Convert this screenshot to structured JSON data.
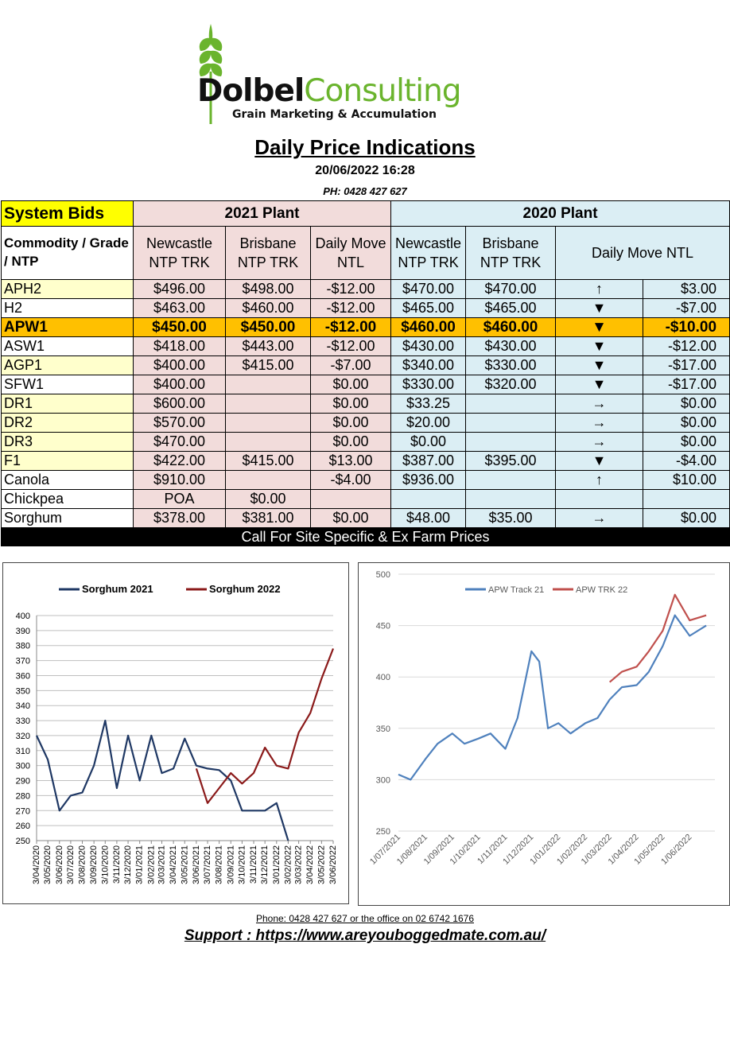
{
  "brand": {
    "name_a": "Dolbel",
    "name_b": "Consulting",
    "tagline": "Grain Marketing & Accumulation",
    "accent": "#6ab42d"
  },
  "header": {
    "title": "Daily Price Indications",
    "datetime": "20/06/2022 16:28",
    "phone": "PH: 0428 427 627"
  },
  "table": {
    "system_bids": "System Bids",
    "plant_2021": "2021 Plant",
    "plant_2020": "2020 Plant",
    "commodity_header": "Commodity / Grade / NTP",
    "col_newcastle_2021": "Newcastle NTP TRK",
    "col_brisbane_2021": "Brisbane NTP TRK",
    "col_move_2021": "Daily Move NTL",
    "col_newcastle_2020": "Newcastle NTP TRK",
    "col_brisbane_2020": "Brisbane NTP TRK",
    "col_move_2020": "Daily  Move NTL",
    "rows": [
      {
        "grade": "APH2",
        "nc21": "$496.00",
        "bn21": "$498.00",
        "mv21": "-$12.00",
        "nc20": "$470.00",
        "bn20": "$470.00",
        "dir": "↑",
        "mv20": "$3.00"
      },
      {
        "grade": "H2",
        "nc21": "$463.00",
        "bn21": "$460.00",
        "mv21": "-$12.00",
        "nc20": "$465.00",
        "bn20": "$465.00",
        "dir": "▼",
        "mv20": "-$7.00"
      },
      {
        "grade": "APW1",
        "nc21": "$450.00",
        "bn21": "$450.00",
        "mv21": "-$12.00",
        "nc20": "$460.00",
        "bn20": "$460.00",
        "dir": "▼",
        "mv20": "-$10.00"
      },
      {
        "grade": "ASW1",
        "nc21": "$418.00",
        "bn21": "$443.00",
        "mv21": "-$12.00",
        "nc20": "$430.00",
        "bn20": "$430.00",
        "dir": "▼",
        "mv20": "-$12.00"
      },
      {
        "grade": "AGP1",
        "nc21": "$400.00",
        "bn21": "$415.00",
        "mv21": "-$7.00",
        "nc20": "$340.00",
        "bn20": "$330.00",
        "dir": "▼",
        "mv20": "-$17.00"
      },
      {
        "grade": "SFW1",
        "nc21": "$400.00",
        "bn21": "",
        "mv21": "$0.00",
        "nc20": "$330.00",
        "bn20": "$320.00",
        "dir": "▼",
        "mv20": "-$17.00"
      },
      {
        "grade": "DR1",
        "nc21": "$600.00",
        "bn21": "",
        "mv21": "$0.00",
        "nc20": "$33.25",
        "bn20": "",
        "dir": "→",
        "mv20": "$0.00"
      },
      {
        "grade": "DR2",
        "nc21": "$570.00",
        "bn21": "",
        "mv21": "$0.00",
        "nc20": "$20.00",
        "bn20": "",
        "dir": "→",
        "mv20": "$0.00"
      },
      {
        "grade": "DR3",
        "nc21": "$470.00",
        "bn21": "",
        "mv21": "$0.00",
        "nc20": "$0.00",
        "bn20": "",
        "dir": "→",
        "mv20": "$0.00"
      },
      {
        "grade": "F1",
        "nc21": "$422.00",
        "bn21": "$415.00",
        "mv21": "$13.00",
        "nc20": "$387.00",
        "bn20": "$395.00",
        "dir": "▼",
        "mv20": "-$4.00"
      },
      {
        "grade": "Canola",
        "nc21": "$910.00",
        "bn21": "",
        "mv21": "-$4.00",
        "nc20": "$936.00",
        "bn20": "",
        "dir": "↑",
        "mv20": "$10.00"
      },
      {
        "grade": "Chickpea",
        "nc21": "POA",
        "bn21": "$0.00",
        "mv21": "",
        "nc20": "",
        "bn20": "",
        "dir": "",
        "mv20": ""
      },
      {
        "grade": "Sorghum",
        "nc21": "$378.00",
        "bn21": "$381.00",
        "mv21": "$0.00",
        "nc20": "$48.00",
        "bn20": "$35.00",
        "dir": "→",
        "mv20": "$0.00"
      }
    ],
    "footer": "Call For Site Specific & Ex Farm Prices"
  },
  "chart_data": [
    {
      "type": "line",
      "series": [
        {
          "name": "Sorghum 2021",
          "color": "#1f3864",
          "x": [
            "3/04/2020",
            "3/05/2020",
            "3/06/2020",
            "3/07/2020",
            "3/08/2020",
            "3/09/2020",
            "3/10/2020",
            "3/11/2020",
            "3/12/2020",
            "3/01/2021",
            "3/02/2021",
            "3/03/2021",
            "3/04/2021",
            "3/05/2021",
            "3/06/2021",
            "3/07/2021",
            "3/08/2021",
            "3/09/2021",
            "3/10/2021",
            "3/11/2021",
            "3/12/2021",
            "3/01/2022",
            "3/02/2022"
          ],
          "values": [
            320,
            304,
            270,
            280,
            282,
            300,
            330,
            285,
            320,
            290,
            320,
            295,
            298,
            318,
            300,
            298,
            297,
            290,
            270,
            270,
            270,
            275,
            250
          ]
        },
        {
          "name": "Sorghum 2022",
          "color": "#8b1a1a",
          "x": [
            "3/06/2021",
            "3/07/2021",
            "3/08/2021",
            "3/09/2021",
            "3/10/2021",
            "3/11/2021",
            "3/12/2021",
            "3/01/2022",
            "3/02/2022",
            "3/03/2022",
            "3/04/2022",
            "3/05/2022",
            "3/06/2022"
          ],
          "values": [
            298,
            275,
            285,
            295,
            288,
            295,
            312,
            300,
            298,
            322,
            335,
            358,
            378
          ]
        }
      ],
      "x_ticks": [
        "3/04/2020",
        "3/05/2020",
        "3/06/2020",
        "3/07/2020",
        "3/08/2020",
        "3/09/2020",
        "3/10/2020",
        "3/11/2020",
        "3/12/2020",
        "3/01/2021",
        "3/02/2021",
        "3/03/2021",
        "3/04/2021",
        "3/05/2021",
        "3/06/2021",
        "3/07/2021",
        "3/08/2021",
        "3/09/2021",
        "3/10/2021",
        "3/11/2021",
        "3/12/2021",
        "3/01/2022",
        "3/02/2022",
        "3/03/2022",
        "3/04/2022",
        "3/05/2022",
        "3/06/2022"
      ],
      "y_ticks": [
        250,
        260,
        270,
        280,
        290,
        300,
        310,
        320,
        330,
        340,
        350,
        360,
        370,
        380,
        390,
        400
      ],
      "ylim": [
        250,
        400
      ],
      "grid": "horizontal",
      "legend": "top"
    },
    {
      "type": "line",
      "series": [
        {
          "name": "APW Track 21",
          "color": "#4f81bd",
          "x": [
            "1/07/2021",
            "15/07/2021",
            "1/08/2021",
            "15/08/2021",
            "1/09/2021",
            "15/09/2021",
            "1/10/2021",
            "15/10/2021",
            "1/11/2021",
            "15/11/2021",
            "1/12/2021",
            "10/12/2021",
            "20/12/2021",
            "1/01/2022",
            "15/01/2022",
            "1/02/2022",
            "15/02/2022",
            "1/03/2022",
            "15/03/2022",
            "1/04/2022",
            "15/04/2022",
            "1/05/2022",
            "15/05/2022",
            "1/06/2022",
            "20/06/2022"
          ],
          "values": [
            305,
            300,
            320,
            335,
            345,
            335,
            340,
            345,
            330,
            360,
            425,
            415,
            350,
            355,
            345,
            355,
            360,
            378,
            390,
            392,
            405,
            430,
            460,
            440,
            450
          ]
        },
        {
          "name": "APW TRK 22",
          "color": "#c0504d",
          "x": [
            "1/03/2022",
            "15/03/2022",
            "1/04/2022",
            "15/04/2022",
            "1/05/2022",
            "15/05/2022",
            "1/06/2022",
            "20/06/2022"
          ],
          "values": [
            395,
            405,
            410,
            425,
            445,
            480,
            455,
            460
          ]
        }
      ],
      "x_ticks": [
        "1/07/2021",
        "1/08/2021",
        "1/09/2021",
        "1/10/2021",
        "1/11/2021",
        "1/12/2021",
        "1/01/2022",
        "1/02/2022",
        "1/03/2022",
        "1/04/2022",
        "1/05/2022",
        "1/06/2022"
      ],
      "y_ticks": [
        250,
        300,
        350,
        400,
        450,
        500
      ],
      "ylim": [
        250,
        500
      ],
      "grid": "horizontal",
      "legend": "top"
    }
  ],
  "contact": {
    "phone_line": "Phone: 0428 427 627 or the office on 02 6742 1676",
    "support": "Support : https://www.areyouboggedmate.com.au/"
  }
}
